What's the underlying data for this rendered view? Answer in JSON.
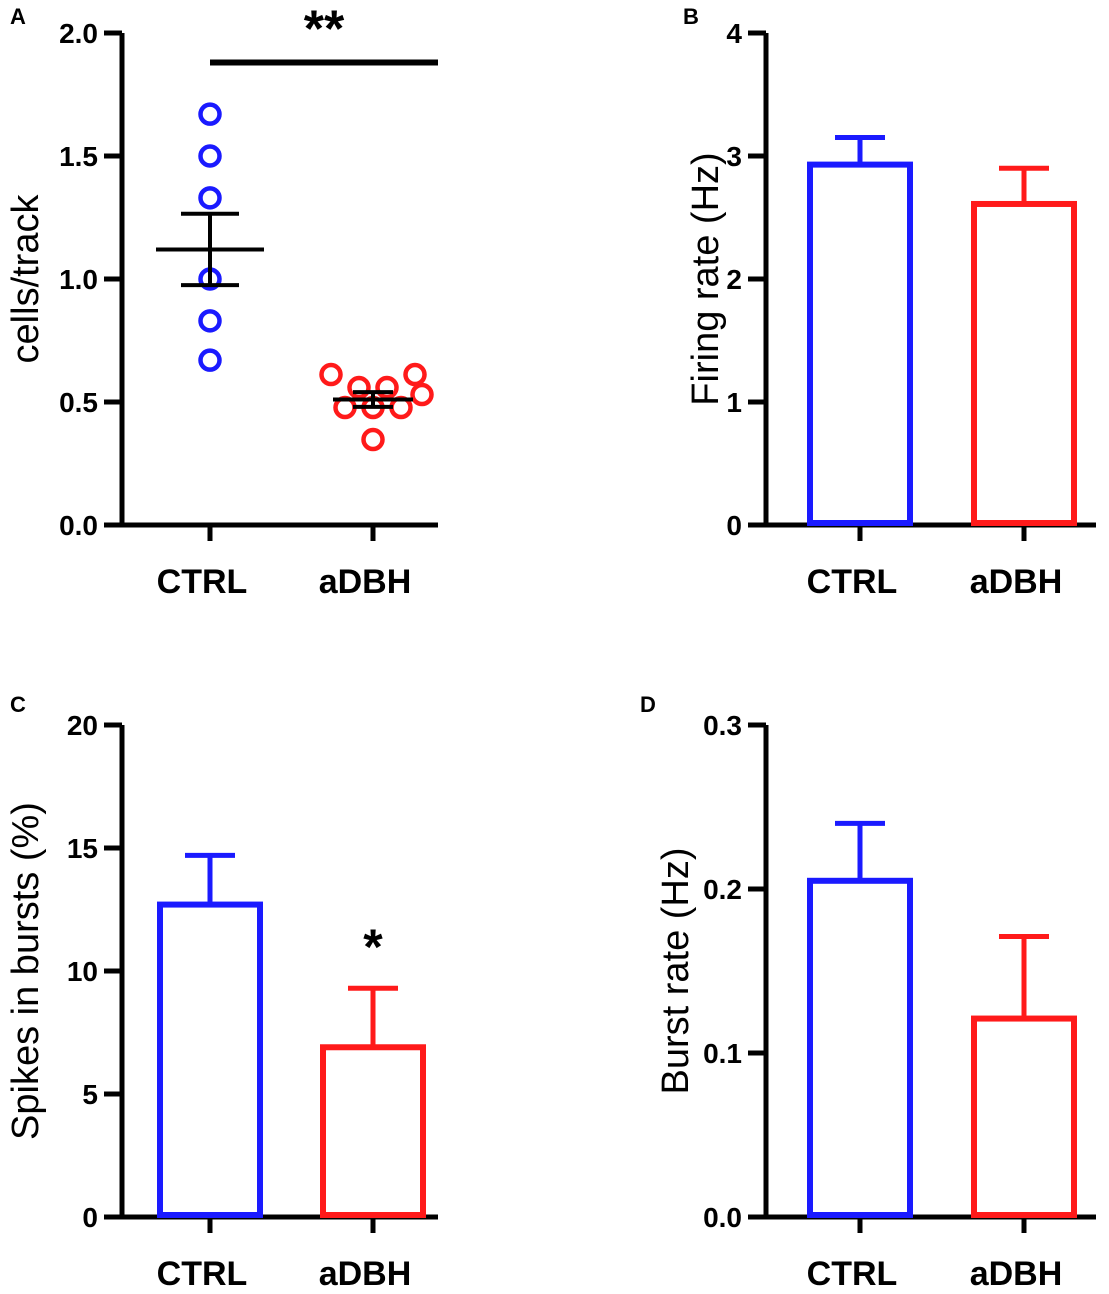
{
  "chart_data": [
    {
      "panel": "A",
      "type": "scatter",
      "ylabel": "cells/track",
      "xlabel": "",
      "categories": [
        "CTRL",
        "aDBH"
      ],
      "ylim": [
        0,
        2.0
      ],
      "yticks": [
        "0.0",
        "0.5",
        "1.0",
        "1.5",
        "2.0"
      ],
      "ytick_values": [
        0,
        0.5,
        1.0,
        1.5,
        2.0
      ],
      "colors": [
        "#1a1aff",
        "#ff1a1a"
      ],
      "series": [
        {
          "name": "CTRL",
          "points": [
            1.67,
            1.5,
            1.33,
            1.0,
            0.83,
            0.67
          ],
          "mean": 1.12,
          "sem": 0.145
        },
        {
          "name": "aDBH",
          "points": [
            0.6,
            0.57,
            0.57,
            0.6,
            0.5,
            0.5,
            0.5,
            0.5,
            0.33
          ],
          "mean": 0.51,
          "sem": 0.03
        }
      ],
      "significance": {
        "label": "**",
        "between": [
          "CTRL",
          "aDBH"
        ],
        "y": 1.88
      }
    },
    {
      "panel": "B",
      "type": "bar",
      "ylabel": "Firing rate (Hz)",
      "xlabel": "",
      "categories": [
        "CTRL",
        "aDBH"
      ],
      "ylim": [
        0,
        4
      ],
      "yticks": [
        "0",
        "1",
        "2",
        "3",
        "4"
      ],
      "ytick_values": [
        0,
        1,
        2,
        3,
        4
      ],
      "colors": [
        "#1a1aff",
        "#ff1a1a"
      ],
      "values": [
        2.93,
        2.61
      ],
      "errors": [
        0.22,
        0.29
      ]
    },
    {
      "panel": "C",
      "type": "bar",
      "ylabel": "Spikes in bursts (%)",
      "xlabel": "",
      "categories": [
        "CTRL",
        "aDBH"
      ],
      "ylim": [
        0,
        20
      ],
      "yticks": [
        "0",
        "5",
        "10",
        "15",
        "20"
      ],
      "ytick_values": [
        0,
        5,
        10,
        15,
        20
      ],
      "colors": [
        "#1a1aff",
        "#ff1a1a"
      ],
      "values": [
        12.7,
        6.9
      ],
      "errors": [
        2.0,
        2.4
      ],
      "annotations": [
        {
          "label": "*",
          "category": "aDBH",
          "y": 11.5
        }
      ]
    },
    {
      "panel": "D",
      "type": "bar",
      "ylabel": "Burst rate (Hz)",
      "xlabel": "",
      "categories": [
        "CTRL",
        "aDBH"
      ],
      "ylim": [
        0,
        0.3
      ],
      "yticks": [
        "0.0",
        "0.1",
        "0.2",
        "0.3"
      ],
      "ytick_values": [
        0,
        0.1,
        0.2,
        0.3
      ],
      "colors": [
        "#1a1aff",
        "#ff1a1a"
      ],
      "values": [
        0.205,
        0.121
      ],
      "errors": [
        0.035,
        0.05
      ]
    }
  ]
}
